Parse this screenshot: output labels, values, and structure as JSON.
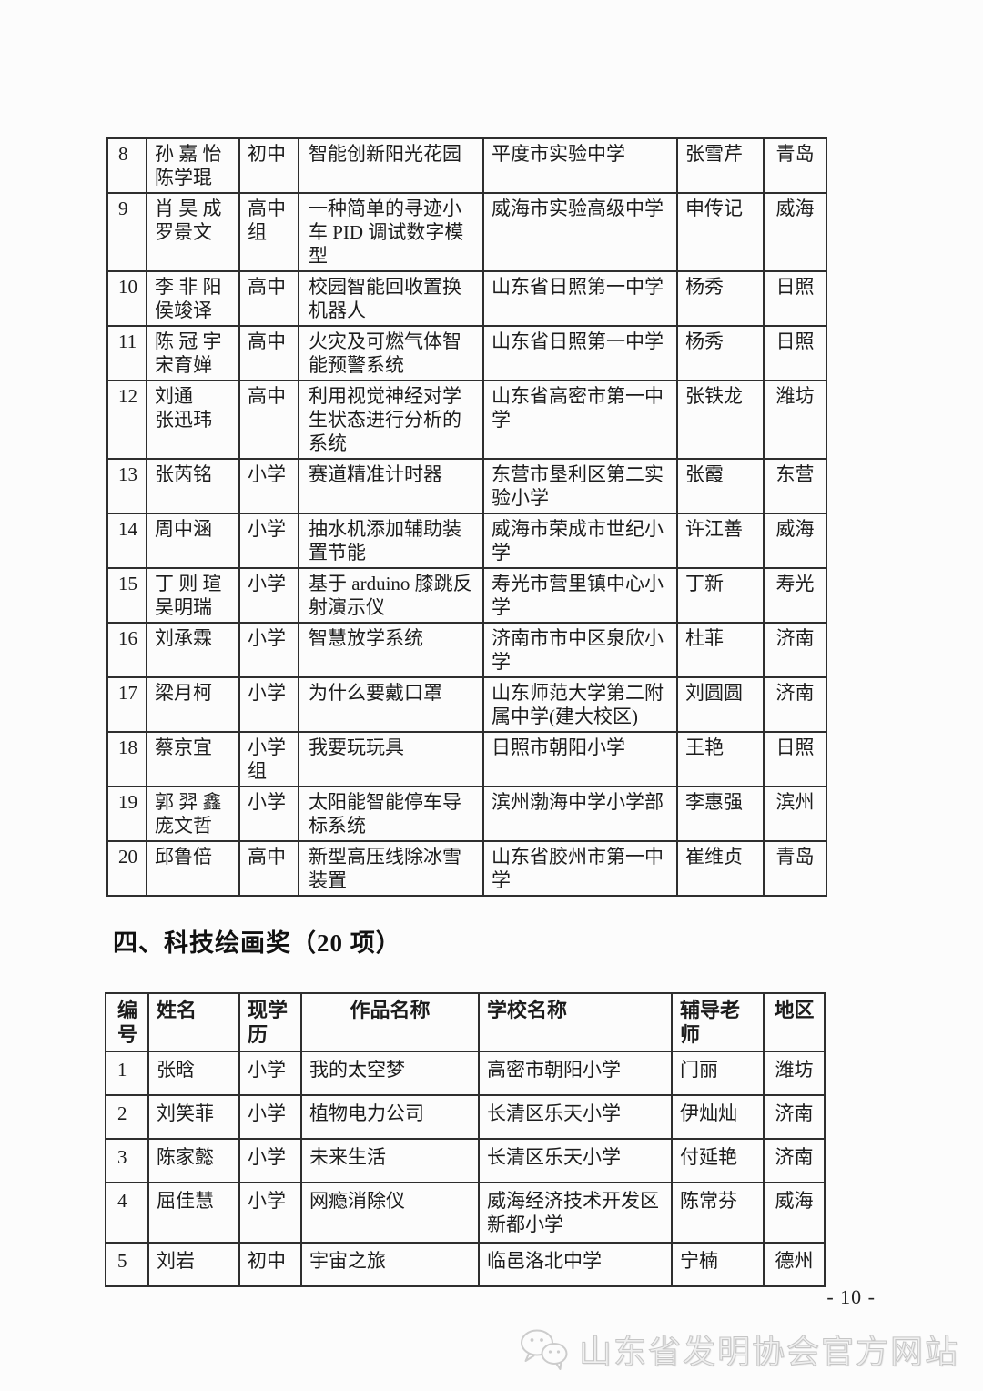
{
  "colors": {
    "background": "#fcfcfc",
    "text": "#1c1c1c",
    "table_border": "#2e2e2e",
    "watermark": "#c6c6c6"
  },
  "table1": {
    "rows": [
      {
        "no": "8",
        "name": "孙 嘉 怡\n陈学琨",
        "level": "初中",
        "work": "智能创新阳光花园",
        "school": "平度市实验中学",
        "tutor": "张雪芹",
        "region": "青岛"
      },
      {
        "no": "9",
        "name": "肖 昊 成\n罗景文",
        "level": "高中\n组",
        "work": "一种简单的寻迹小车 PID 调试数字模型",
        "school": "威海市实验高级中学",
        "tutor": "申传记",
        "region": "威海"
      },
      {
        "no": "10",
        "name": "李 非 阳\n侯竣译",
        "level": "高中",
        "work": "校园智能回收置换机器人",
        "school": "山东省日照第一中学",
        "tutor": "杨秀",
        "region": "日照"
      },
      {
        "no": "11",
        "name": "陈 冠 宇\n宋育婵",
        "level": "高中",
        "work": "火灾及可燃气体智能预警系统",
        "school": "山东省日照第一中学",
        "tutor": "杨秀",
        "region": "日照"
      },
      {
        "no": "12",
        "name": "刘通\n张迅玮",
        "level": "高中",
        "work": "利用视觉神经对学生状态进行分析的系统",
        "school": "山东省高密市第一中学",
        "tutor": "张铁龙",
        "region": "潍坊"
      },
      {
        "no": "13",
        "name": "张芮铭",
        "level": "小学",
        "work": "赛道精准计时器",
        "school": "东营市垦利区第二实验小学",
        "tutor": "张霞",
        "region": "东营"
      },
      {
        "no": "14",
        "name": "周中涵",
        "level": "小学",
        "work": "抽水机添加辅助装置节能",
        "school": "威海市荣成市世纪小学",
        "tutor": "许江善",
        "region": "威海"
      },
      {
        "no": "15",
        "name": "丁 则 瑄\n吴明瑞",
        "level": "小学",
        "work": "基于 arduino 膝跳反射演示仪",
        "school": "寿光市营里镇中心小学",
        "tutor": "丁新",
        "region": "寿光"
      },
      {
        "no": "16",
        "name": "刘承霖",
        "level": "小学",
        "work": "智慧放学系统",
        "school": "济南市市中区泉欣小学",
        "tutor": "杜菲",
        "region": "济南"
      },
      {
        "no": "17",
        "name": "梁月柯",
        "level": "小学",
        "work": "为什么要戴口罩",
        "school": "山东师范大学第二附属中学(建大校区)",
        "tutor": "刘圆圆",
        "region": "济南"
      },
      {
        "no": "18",
        "name": "蔡京宜",
        "level": "小学\n组",
        "work": "我要玩玩具",
        "school": "日照市朝阳小学",
        "tutor": "王艳",
        "region": "日照"
      },
      {
        "no": "19",
        "name": "郭 羿 鑫\n庞文哲",
        "level": "小学",
        "work": "太阳能智能停车导标系统",
        "school": "滨州渤海中学小学部",
        "tutor": "李惠强",
        "region": "滨州"
      },
      {
        "no": "20",
        "name": "邱鲁倍",
        "level": "高中",
        "work": "新型高压线除冰雪装置",
        "school": "山东省胶州市第一中学",
        "tutor": "崔维贞",
        "region": "青岛"
      }
    ]
  },
  "section": {
    "heading": "四、科技绘画奖（20 项）"
  },
  "table2": {
    "headers": {
      "no": "编\n号",
      "name": "姓名",
      "level": "现学\n历",
      "work": "作品名称",
      "school": "学校名称",
      "tutor": "辅导老\n师",
      "region": "地区"
    },
    "rows": [
      {
        "no": "1",
        "name": "张晗",
        "level": "小学",
        "work": "我的太空梦",
        "school": "高密市朝阳小学",
        "tutor": "门丽",
        "region": "潍坊"
      },
      {
        "no": "2",
        "name": "刘笑菲",
        "level": "小学",
        "work": "植物电力公司",
        "school": "长清区乐天小学",
        "tutor": "伊灿灿",
        "region": "济南"
      },
      {
        "no": "3",
        "name": "陈家懿",
        "level": "小学",
        "work": "未来生活",
        "school": "长清区乐天小学",
        "tutor": "付延艳",
        "region": "济南"
      },
      {
        "no": "4",
        "name": "屈佳慧",
        "level": "小学",
        "work": "网瘾消除仪",
        "school": "威海经济技术开发区新都小学",
        "tutor": "陈常芬",
        "region": "威海"
      },
      {
        "no": "5",
        "name": "刘岩",
        "level": "初中",
        "work": "宇宙之旅",
        "school": "临邑洛北中学",
        "tutor": "宁楠",
        "region": "德州"
      }
    ]
  },
  "footer": {
    "page_number": "- 10 -",
    "watermark_text": "山东省发明协会官方网站",
    "watermark_icon": "wechat-icon"
  }
}
